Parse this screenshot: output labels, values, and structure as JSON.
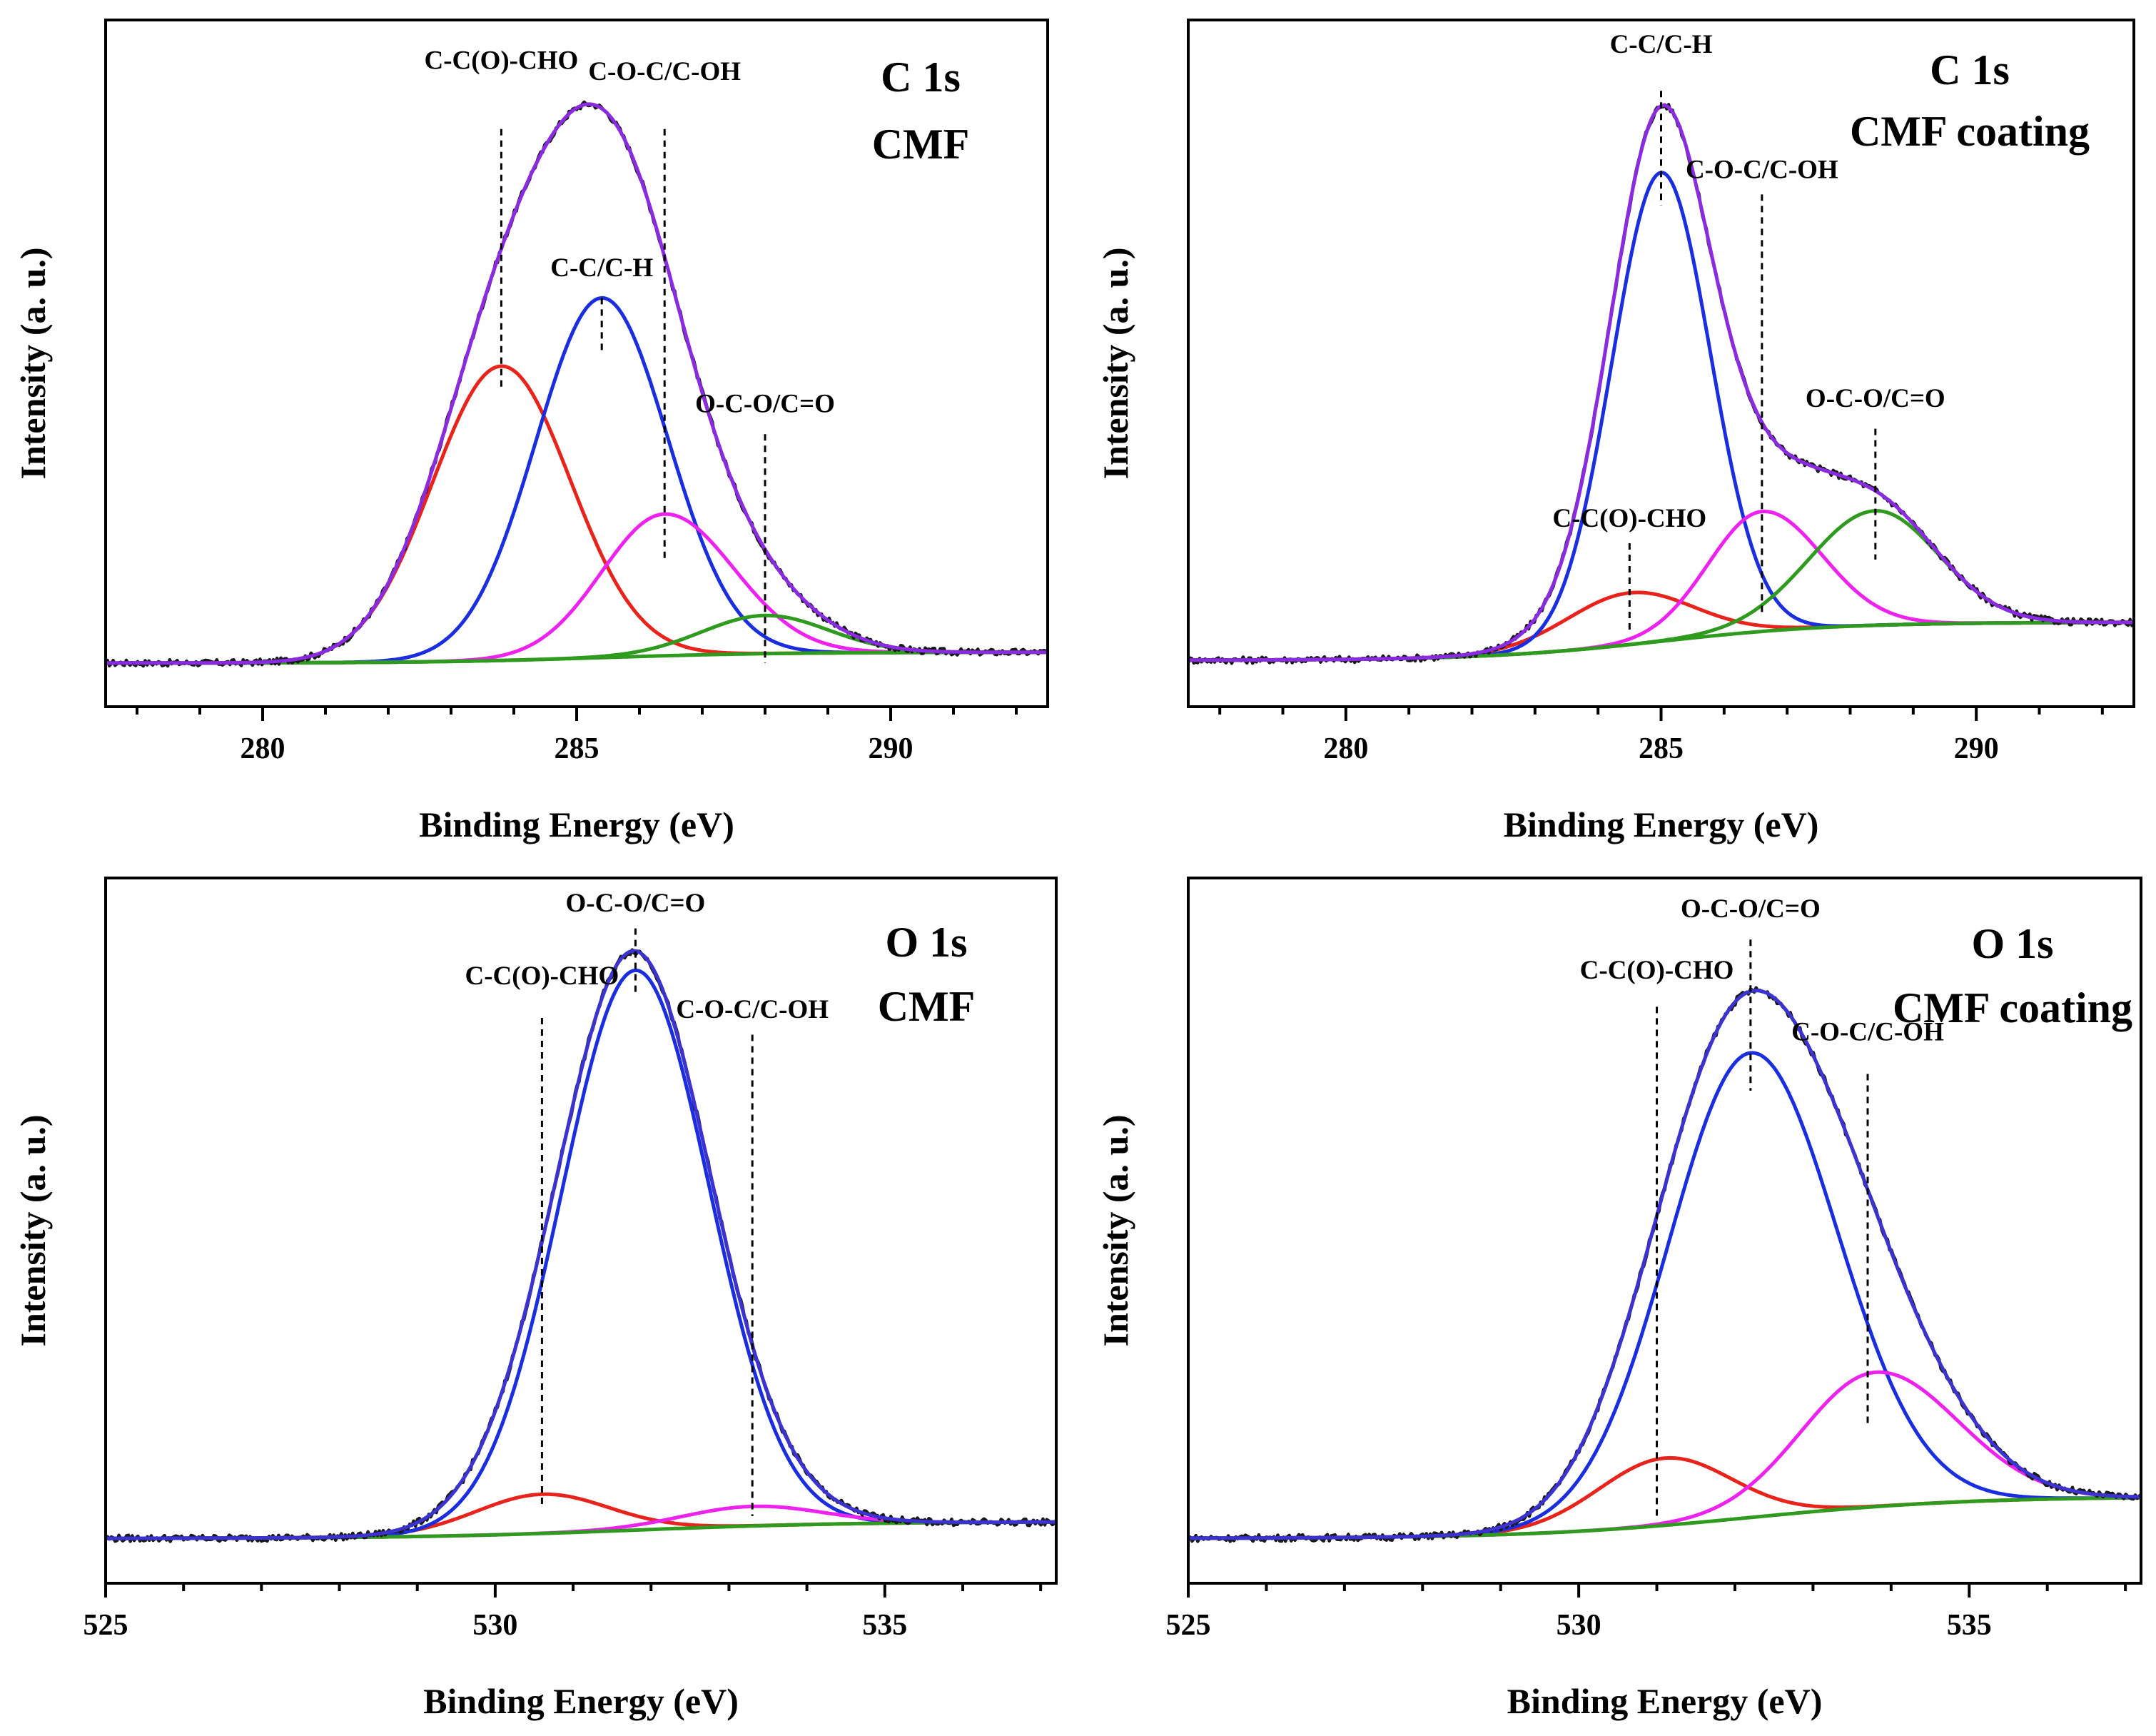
{
  "chart_data": [
    {
      "type": "line",
      "title": "C 1s",
      "subtitle": "CMF",
      "xlabel": "Binding Energy (eV)",
      "ylabel": "Intensity (a. u.)",
      "xlim": [
        277.5,
        292.5
      ],
      "ylim": [
        -0.08,
        1.18
      ],
      "xticks": [
        280,
        285,
        290
      ],
      "baseline": {
        "start": 0,
        "end": 0.02
      },
      "components": [
        {
          "name": "C-C(O)-CHO",
          "center": 283.8,
          "height": 0.54,
          "sigma_left": 1.1,
          "sigma_right": 1.1,
          "color": "#e8231c"
        },
        {
          "name": "C-C/C-H",
          "center": 285.4,
          "height": 0.66,
          "sigma_left": 1.05,
          "sigma_right": 1.05,
          "color": "#1a2ee0"
        },
        {
          "name": "C-O-C/C-OH",
          "center": 286.4,
          "height": 0.26,
          "sigma_left": 1.0,
          "sigma_right": 1.1,
          "color": "#ee22ee"
        },
        {
          "name": "O-C-O/C=O",
          "center": 288.0,
          "height": 0.07,
          "sigma_left": 1.0,
          "sigma_right": 1.0,
          "color": "#2e9a1e"
        }
      ],
      "annotations": [
        {
          "text": "C-C(O)-CHO",
          "x": 283.8,
          "line_top": 0.98,
          "line_bottom": 0.5,
          "label_y": 1.09
        },
        {
          "text": "C-O-C/C-OH",
          "x": 286.4,
          "line_top": 0.98,
          "line_bottom": 0.19,
          "label_y": 1.07
        },
        {
          "text": "C-C/C-H",
          "x": 285.4,
          "line_top": 0.67,
          "line_bottom": 0.57,
          "label_y": 0.71
        },
        {
          "text": "O-C-O/C=O",
          "x": 288.0,
          "line_top": 0.42,
          "line_bottom": 0.0,
          "label_y": 0.46
        }
      ]
    },
    {
      "type": "line",
      "title": "C 1s",
      "subtitle": "CMF coating",
      "xlabel": "Binding Energy (eV)",
      "ylabel": "Intensity (a. u.)",
      "xlim": [
        277.5,
        292.5
      ],
      "ylim": [
        -0.08,
        1.18
      ],
      "xticks": [
        280,
        285,
        290
      ],
      "baseline": {
        "start": 0.005,
        "end": 0.075
      },
      "components": [
        {
          "name": "C-C(O)-CHO",
          "center": 284.5,
          "height": 0.095,
          "sigma_left": 1.0,
          "sigma_right": 1.0,
          "color": "#e8231c"
        },
        {
          "name": "C-C/C-H",
          "center": 285.0,
          "height": 0.86,
          "sigma_left": 0.78,
          "sigma_right": 0.78,
          "color": "#1a2ee0"
        },
        {
          "name": "C-O-C/C-OH",
          "center": 286.6,
          "height": 0.22,
          "sigma_left": 0.85,
          "sigma_right": 0.95,
          "color": "#ee22ee"
        },
        {
          "name": "O-C-O/C=O",
          "center": 288.4,
          "height": 0.21,
          "sigma_left": 1.05,
          "sigma_right": 1.0,
          "color": "#2e9a1e"
        }
      ],
      "annotations": [
        {
          "text": "C-C/C-H",
          "x": 285.0,
          "line_top": 1.05,
          "line_bottom": 0.84,
          "label_y": 1.12
        },
        {
          "text": "C-O-C/C-OH",
          "x": 286.6,
          "line_top": 0.86,
          "line_bottom": 0.09,
          "label_y": 0.89
        },
        {
          "text": "O-C-O/C=O",
          "x": 288.4,
          "line_top": 0.43,
          "line_bottom": 0.19,
          "label_y": 0.47
        },
        {
          "text": "C-C(O)-CHO",
          "x": 284.5,
          "line_top": 0.22,
          "line_bottom": 0.06,
          "label_y": 0.25
        }
      ]
    },
    {
      "type": "line",
      "title": "O 1s",
      "subtitle": "CMF",
      "xlabel": "Binding Energy (eV)",
      "ylabel": "Intensity (a. u.)",
      "xlim": [
        525,
        537.2
      ],
      "ylim": [
        -0.08,
        1.18
      ],
      "xticks": [
        525,
        530,
        535
      ],
      "baseline": {
        "start": 0,
        "end": 0.03
      },
      "components": [
        {
          "name": "C-C(O)-CHO",
          "center": 530.6,
          "height": 0.07,
          "sigma_left": 0.85,
          "sigma_right": 0.85,
          "color": "#e8231c"
        },
        {
          "name": "O-C-O/C=O",
          "center": 531.8,
          "height": 1.0,
          "sigma_left": 0.95,
          "sigma_right": 0.95,
          "color": "#1a2ee0"
        },
        {
          "name": "C-O-C/C-OH",
          "center": 533.3,
          "height": 0.035,
          "sigma_left": 0.9,
          "sigma_right": 0.9,
          "color": "#ee22ee"
        },
        {
          "name": "Background",
          "center": 531.8,
          "height": 0.0,
          "sigma_left": 1.0,
          "sigma_right": 1.0,
          "color": "#2e9a1e"
        }
      ],
      "annotations": [
        {
          "text": "O-C-O/C=O",
          "x": 531.8,
          "line_top": 1.09,
          "line_bottom": 0.97,
          "label_y": 1.12
        },
        {
          "text": "C-C(O)-CHO",
          "x": 530.6,
          "line_top": 0.93,
          "line_bottom": 0.06,
          "label_y": 0.99
        },
        {
          "text": "C-O-C/C-OH",
          "x": 533.3,
          "line_top": 0.9,
          "line_bottom": 0.04,
          "label_y": 0.93
        }
      ]
    },
    {
      "type": "line",
      "title": "O 1s",
      "subtitle": "CMF coating",
      "xlabel": "Binding Energy (eV)",
      "ylabel": "Intensity (a. u.)",
      "xlim": [
        525,
        537.2
      ],
      "ylim": [
        -0.08,
        1.18
      ],
      "xticks": [
        525,
        530,
        535
      ],
      "baseline": {
        "start": 0,
        "end": 0.075
      },
      "components": [
        {
          "name": "C-C(O)-CHO",
          "center": 531.1,
          "height": 0.12,
          "sigma_left": 0.85,
          "sigma_right": 0.85,
          "color": "#e8231c"
        },
        {
          "name": "O-C-O/C=O",
          "center": 532.2,
          "height": 0.83,
          "sigma_left": 1.05,
          "sigma_right": 1.1,
          "color": "#1a2ee0"
        },
        {
          "name": "C-O-C/C-OH",
          "center": 533.8,
          "height": 0.24,
          "sigma_left": 0.95,
          "sigma_right": 1.05,
          "color": "#ee22ee"
        },
        {
          "name": "Background",
          "center": 532.2,
          "height": 0.0,
          "sigma_left": 1.0,
          "sigma_right": 1.0,
          "color": "#2e9a1e"
        }
      ],
      "annotations": [
        {
          "text": "O-C-O/C=O",
          "x": 532.2,
          "line_top": 1.07,
          "line_bottom": 0.8,
          "label_y": 1.11
        },
        {
          "text": "C-C(O)-CHO",
          "x": 531.0,
          "line_top": 0.95,
          "line_bottom": 0.04,
          "label_y": 1.0
        },
        {
          "text": "C-O-C/C-OH",
          "x": 533.7,
          "line_top": 0.83,
          "line_bottom": 0.2,
          "label_y": 0.89
        }
      ]
    }
  ]
}
